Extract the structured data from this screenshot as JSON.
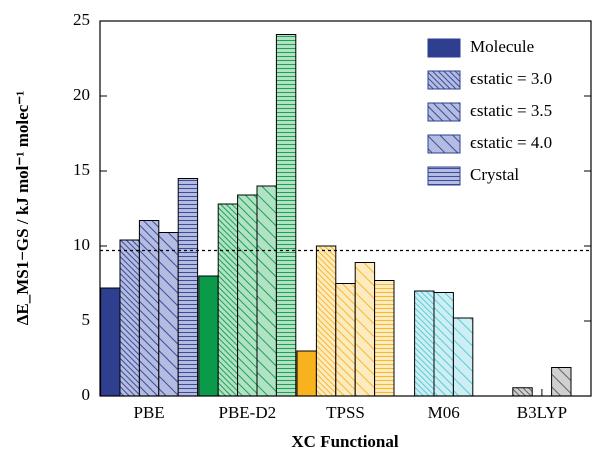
{
  "chart_data": {
    "type": "bar",
    "xlabel": "XC Functional",
    "ylabel": "ΔE_MS1−GS / kJ mol⁻¹ molec⁻¹",
    "categories": [
      "PBE",
      "PBE-D2",
      "TPSS",
      "M06",
      "B3LYP"
    ],
    "category_colors": [
      "#2e3f8f",
      "#0a9a4a",
      "#f7b21e",
      "#4fc6d6",
      "#555555"
    ],
    "category_light_colors": [
      "#b4bce2",
      "#b2e2c4",
      "#fdebc0",
      "#cdeff4",
      "#d0d0d0"
    ],
    "series": [
      {
        "name": "Molecule",
        "hatch": "solid",
        "values": [
          7.2,
          8.0,
          3.0,
          null,
          null
        ]
      },
      {
        "name": "ϵstatic = 3.0",
        "hatch": "diag-dense",
        "values": [
          10.4,
          12.8,
          10.0,
          7.0,
          0.55
        ]
      },
      {
        "name": "ϵstatic = 3.5",
        "hatch": "diag-medium",
        "values": [
          11.7,
          13.4,
          7.5,
          6.9,
          null
        ]
      },
      {
        "name": "ϵstatic = 4.0",
        "hatch": "diag-wide",
        "values": [
          10.9,
          14.0,
          8.9,
          5.2,
          1.9
        ]
      },
      {
        "name": "Crystal",
        "hatch": "horizontal",
        "values": [
          14.5,
          24.1,
          7.7,
          null,
          null
        ]
      }
    ],
    "reference_line": 9.7,
    "ylim": [
      0,
      25
    ],
    "yticks": [
      0,
      5,
      10,
      15,
      20,
      25
    ],
    "legend": "upper right"
  }
}
